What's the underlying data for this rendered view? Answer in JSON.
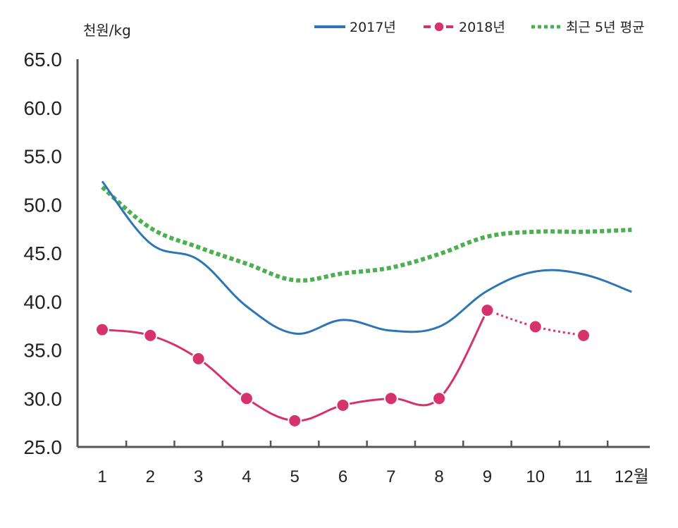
{
  "chart_data": {
    "type": "line",
    "unit_label": "천원/kg",
    "categories": [
      "1",
      "2",
      "3",
      "4",
      "5",
      "6",
      "7",
      "8",
      "9",
      "10",
      "11",
      "12월"
    ],
    "ylim": [
      25.0,
      65.0
    ],
    "yticks": [
      "65.0",
      "60.0",
      "55.0",
      "50.0",
      "45.0",
      "40.0",
      "35.0",
      "30.0",
      "25.0"
    ],
    "grid": false,
    "legend_position": "top-right",
    "series": [
      {
        "name": "2017년",
        "color": "#2E75B6",
        "style": "solid",
        "values": [
          52.4,
          46.0,
          44.3,
          39.5,
          36.7,
          38.1,
          37.0,
          37.4,
          41.1,
          43.1,
          42.8,
          41.0
        ]
      },
      {
        "name": "2018년",
        "color": "#D6336C",
        "style": "solid-markers",
        "dotted_from_index": 8,
        "values": [
          37.1,
          36.5,
          34.1,
          30.0,
          27.7,
          29.3,
          30.0,
          30.0,
          39.1,
          37.4,
          36.5,
          null
        ]
      },
      {
        "name": "최근 5년 평균",
        "color": "#4CAF50",
        "style": "dotted",
        "values": [
          51.8,
          47.6,
          45.6,
          43.9,
          42.2,
          42.9,
          43.5,
          44.9,
          46.7,
          47.2,
          47.2,
          47.4
        ]
      }
    ]
  }
}
